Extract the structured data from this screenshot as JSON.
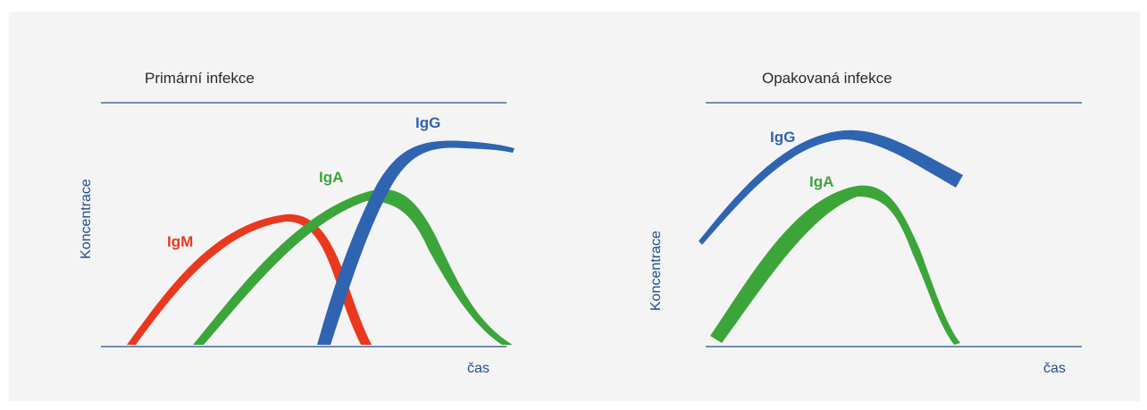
{
  "colors": {
    "igm": "#e8391f",
    "iga": "#3ca53a",
    "igg": "#2f64b1",
    "axis": "#1f4d8c",
    "text": "#2a2a2a"
  },
  "primary": {
    "title": "Primární infekce",
    "ylabel": "Koncentrace",
    "xlabel": "čas",
    "curves": {
      "igm": "IgM",
      "iga": "IgA",
      "igg": "IgG"
    }
  },
  "repeat": {
    "title": "Opakovaná infekce",
    "ylabel": "Koncentrace",
    "xlabel": "čas",
    "curves": {
      "igg": "IgG",
      "iga": "IgA"
    }
  }
}
